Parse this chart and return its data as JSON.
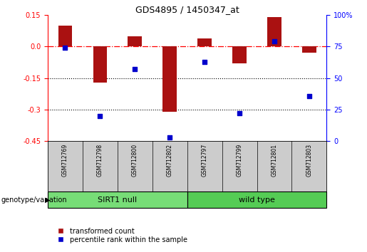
{
  "title": "GDS4895 / 1450347_at",
  "samples": [
    "GSM712769",
    "GSM712798",
    "GSM712800",
    "GSM712802",
    "GSM712797",
    "GSM712799",
    "GSM712801",
    "GSM712803"
  ],
  "transformed_counts": [
    0.1,
    -0.17,
    0.05,
    -0.31,
    0.04,
    -0.08,
    0.14,
    -0.03
  ],
  "percentile_ranks": [
    74,
    20,
    57,
    3,
    63,
    22,
    79,
    36
  ],
  "groups": [
    {
      "label": "SIRT1 null",
      "indices": [
        0,
        1,
        2,
        3
      ],
      "color": "#77dd77"
    },
    {
      "label": "wild type",
      "indices": [
        4,
        5,
        6,
        7
      ],
      "color": "#55cc55"
    }
  ],
  "ylim_left": [
    -0.45,
    0.15
  ],
  "ylim_right": [
    0,
    100
  ],
  "yticks_left": [
    0.15,
    0.0,
    -0.15,
    -0.3,
    -0.45
  ],
  "yticks_right": [
    100,
    75,
    50,
    25,
    0
  ],
  "bar_color": "#aa1111",
  "dot_color": "#0000cc",
  "dotted_lines": [
    -0.15,
    -0.3
  ],
  "background_color": "#ffffff",
  "group_label": "genotype/variation",
  "legend_items": [
    "transformed count",
    "percentile rank within the sample"
  ],
  "xtick_bg": "#cccccc",
  "bar_width": 0.4,
  "dot_size": 25
}
